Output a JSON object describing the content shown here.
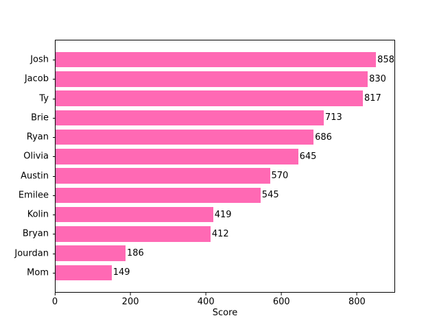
{
  "figure": {
    "background": "#ffffff",
    "text_color": "#000000",
    "spine_color": "#000000"
  },
  "chart_data": {
    "type": "bar",
    "orientation": "horizontal",
    "title": "",
    "xlabel": "Score",
    "ylabel": "",
    "categories": [
      "Josh",
      "Jacob",
      "Ty",
      "Brie",
      "Ryan",
      "Olivia",
      "Austin",
      "Emilee",
      "Kolin",
      "Bryan",
      "Jourdan",
      "Mom"
    ],
    "values": [
      858,
      830,
      817,
      713,
      686,
      645,
      570,
      545,
      419,
      412,
      186,
      149
    ],
    "bar_labels": [
      "858",
      "830",
      "817",
      "713",
      "686",
      "645",
      "570",
      "545",
      "419",
      "412",
      "186",
      "149"
    ],
    "xlim": [
      0,
      901
    ],
    "xticks": [
      0,
      200,
      400,
      600,
      800
    ],
    "xtick_labels": [
      "0",
      "200",
      "400",
      "600",
      "800"
    ],
    "bar_color": "#FF69B4",
    "grid": false,
    "legend": null
  }
}
